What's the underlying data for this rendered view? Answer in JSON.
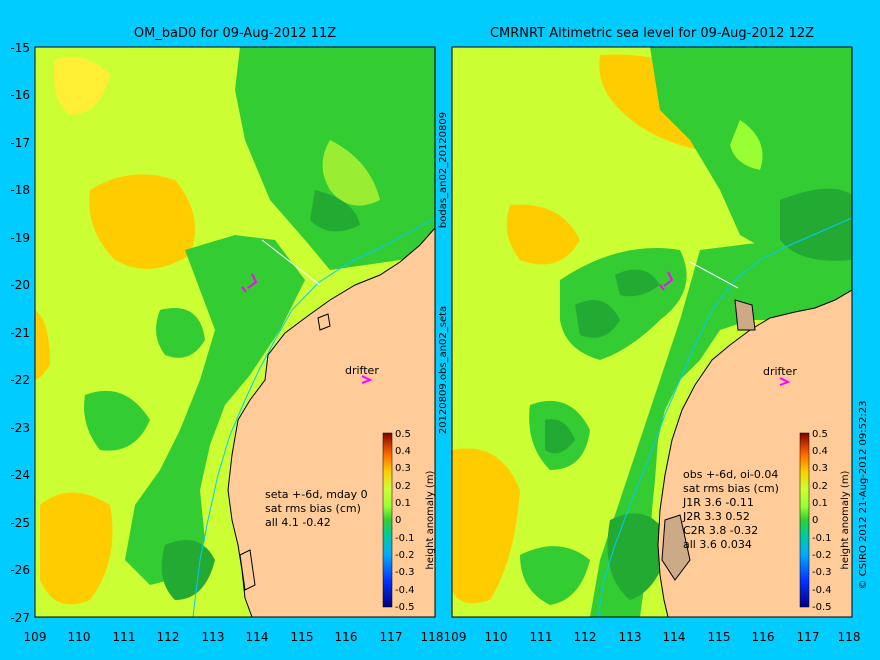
{
  "panels": [
    {
      "title": "OM_baD0 for 09-Aug-2012 11Z",
      "stats": [
        "seta +-6d, mday 0",
        "sat rms bias (cm)",
        "all 4.1 -0.42"
      ],
      "drifter_label": "drifter"
    },
    {
      "title": "CMRNRT Altimetric sea level  for 09-Aug-2012 12Z",
      "stats": [
        "obs +-6d, oi-0.04",
        "sat rms bias (cm)",
        "J1R   3.6 -0.11",
        "J2R   3.3 0.52",
        "C2R   3.8 -0.32",
        "all 3.6 0.034"
      ],
      "drifter_label": "drifter"
    }
  ],
  "y_ticks": [
    "-15",
    "-16",
    "-17",
    "-18",
    "-19",
    "-20",
    "-21",
    "-22",
    "-23",
    "-24",
    "-25",
    "-26",
    "-27"
  ],
  "x_ticks": [
    "109",
    "110",
    "111",
    "112",
    "113",
    "114",
    "115",
    "116",
    "117",
    "118"
  ],
  "colorbar": {
    "label": "height anomaly (m)",
    "ticks": [
      "0.5",
      "0.4",
      "0.3",
      "0.2",
      "0.1",
      "0",
      "-0.1",
      "-0.2",
      "-0.3",
      "-0.4",
      "-0.5"
    ]
  },
  "side_label_top": "bodas_an02_20120809",
  "side_label_bottom": "20120809.obs_an02_seta",
  "credit": "© CSIRO 2012  21-Aug-2012 09:52:23",
  "colors": {
    "background": "#00ccff",
    "land": "#ffcc99",
    "coast_line": "#00ccff",
    "sea_yellow": "#ccff33",
    "sea_green": "#33cc33",
    "sea_orange": "#ffcc00"
  }
}
